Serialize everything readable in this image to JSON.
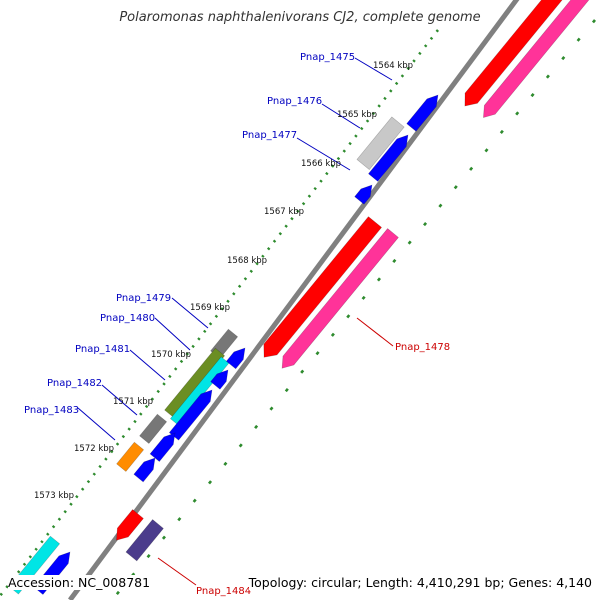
{
  "header": {
    "title": "Polaromonas naphthalenivorans CJ2, complete genome"
  },
  "footer": {
    "accession": "Accession: NC_008781",
    "summary": "Topology: circular; Length: 4,410,291 bp; Genes: 4,140"
  },
  "colors": {
    "backbone": "#808080",
    "ruler": "#2e8b2e",
    "gene_label_blue": "#0000c0",
    "gene_label_red": "#cc0000",
    "red": "#ff0000",
    "pink": "#ff3399",
    "blue": "#0000ff",
    "gray": "#777777",
    "light_gray": "#c8c8c8",
    "olive": "#6b8e23",
    "cyan": "#00e5e5",
    "orange": "#ff8c00",
    "slate": "#4b3c8c"
  },
  "kbp_labels": [
    "1564 kbp",
    "1565 kbp",
    "1566 kbp",
    "1567 kbp",
    "1568 kbp",
    "1569 kbp",
    "1570 kbp",
    "1571 kbp",
    "1572 kbp",
    "1573 kbp"
  ],
  "gene_labels": [
    {
      "text": "Pnap_1475",
      "color": "blue"
    },
    {
      "text": "Pnap_1476",
      "color": "blue"
    },
    {
      "text": "Pnap_1477",
      "color": "blue"
    },
    {
      "text": "Pnap_1478",
      "color": "red"
    },
    {
      "text": "Pnap_1479",
      "color": "blue"
    },
    {
      "text": "Pnap_1480",
      "color": "blue"
    },
    {
      "text": "Pnap_1481",
      "color": "blue"
    },
    {
      "text": "Pnap_1482",
      "color": "blue"
    },
    {
      "text": "Pnap_1483",
      "color": "blue"
    },
    {
      "text": "Pnap_1484",
      "color": "red"
    }
  ]
}
